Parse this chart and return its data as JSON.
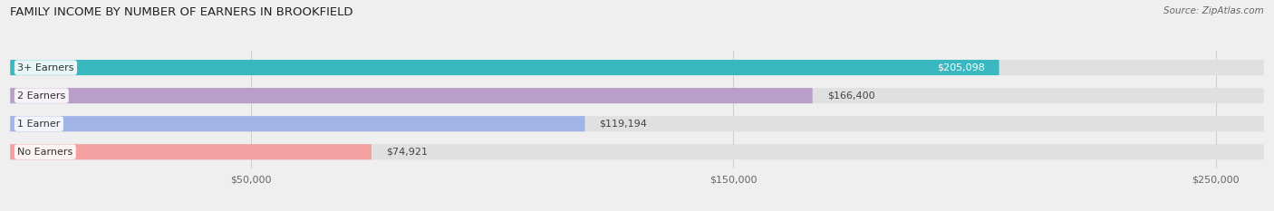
{
  "title": "FAMILY INCOME BY NUMBER OF EARNERS IN BROOKFIELD",
  "source": "Source: ZipAtlas.com",
  "categories": [
    "No Earners",
    "1 Earner",
    "2 Earners",
    "3+ Earners"
  ],
  "values": [
    74921,
    119194,
    166400,
    205098
  ],
  "bar_colors": [
    "#f4a0a0",
    "#a0b4e8",
    "#b89ec8",
    "#3ab8c0"
  ],
  "label_colors": [
    "#333333",
    "#333333",
    "#333333",
    "#ffffff"
  ],
  "bg_color": "#efefef",
  "bar_bg_color": "#e0e0e0",
  "xlim": [
    0,
    260000
  ],
  "xticks": [
    50000,
    150000,
    250000
  ],
  "xtick_labels": [
    "$50,000",
    "$150,000",
    "$250,000"
  ],
  "bar_height": 0.55,
  "figsize": [
    14.06,
    2.33
  ],
  "dpi": 100,
  "title_fontsize": 9.5,
  "label_fontsize": 8,
  "value_fontsize": 8,
  "source_fontsize": 7.5
}
